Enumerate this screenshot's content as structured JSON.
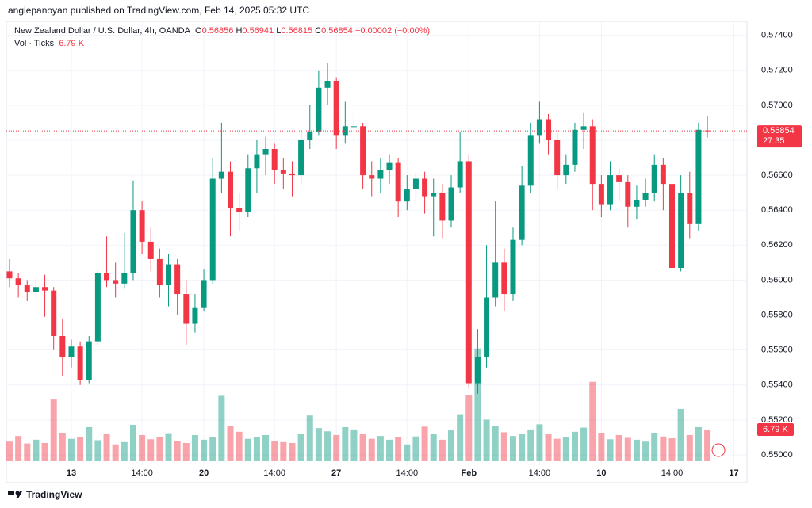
{
  "header": "angiepanoyan published on TradingView.com, Feb 14, 2025 05:32 UTC",
  "footer": "TradingView",
  "chart_data": {
    "type": "candlestick",
    "symbol": "New Zealand Dollar / U.S. Dollar, 4h, OANDA",
    "legend_letters": [
      "O",
      "H",
      "L",
      "C"
    ],
    "change_label": "−0.00002 (−0.00%)",
    "volume_title": "Vol · Ticks",
    "countdown": "27:35",
    "up_color": "#089981",
    "down_color": "#f23645",
    "grid": true,
    "categories": [
      null,
      null,
      null,
      null,
      null,
      null,
      null,
      "13",
      null,
      null,
      null,
      null,
      null,
      null,
      null,
      "14:00",
      null,
      null,
      null,
      null,
      null,
      null,
      "20",
      null,
      null,
      null,
      null,
      null,
      null,
      null,
      "14:00",
      null,
      null,
      null,
      null,
      null,
      null,
      "27",
      null,
      null,
      null,
      null,
      null,
      null,
      null,
      "14:00",
      null,
      null,
      null,
      null,
      null,
      null,
      "Feb",
      null,
      null,
      null,
      null,
      null,
      null,
      null,
      "14:00",
      null,
      null,
      null,
      null,
      null,
      null,
      "10",
      null,
      null,
      null,
      null,
      null,
      null,
      null,
      "14:00",
      null,
      null,
      null,
      null,
      null,
      null,
      "17",
      null
    ],
    "candles": {
      "open": [
        0.5605,
        0.5601,
        0.5597,
        0.5593,
        0.5596,
        0.5594,
        0.5568,
        0.5556,
        0.5562,
        0.5543,
        0.5565,
        0.5604,
        0.56,
        0.5598,
        0.5604,
        0.564,
        0.5622,
        0.5612,
        0.5597,
        0.5609,
        0.5592,
        0.5575,
        0.5584,
        0.56,
        0.5658,
        0.5662,
        0.5641,
        0.5639,
        0.5664,
        0.5672,
        0.5675,
        0.5663,
        0.5661,
        0.566,
        0.568,
        0.5685,
        0.571,
        0.5714,
        0.5683,
        0.5688,
        0.5688,
        0.566,
        0.5658,
        0.5663,
        0.5667,
        0.5645,
        0.5652,
        0.5658,
        0.5648,
        0.565,
        0.5634,
        0.5653,
        0.5668,
        0.5541,
        0.5556,
        0.559,
        0.561,
        0.5592,
        0.5623,
        0.5654,
        0.5683,
        0.5692,
        0.568,
        0.566,
        0.5666,
        0.5686,
        0.5688,
        0.5655,
        0.5643,
        0.566,
        0.5656,
        0.5642,
        0.5646,
        0.565,
        0.5666,
        0.5655,
        0.5607,
        0.565,
        0.5632,
        0.56856,
        null,
        null,
        null,
        null
      ],
      "high": [
        0.5612,
        0.5604,
        0.56,
        0.5602,
        0.5603,
        0.5596,
        0.5578,
        0.5566,
        0.5565,
        0.5568,
        0.5606,
        0.5625,
        0.561,
        0.5627,
        0.5657,
        0.5645,
        0.563,
        0.5618,
        0.5615,
        0.5612,
        0.56,
        0.5592,
        0.5606,
        0.567,
        0.569,
        0.5668,
        0.565,
        0.5672,
        0.568,
        0.5682,
        0.5678,
        0.567,
        0.5668,
        0.5685,
        0.57,
        0.572,
        0.5724,
        0.5716,
        0.5702,
        0.5696,
        0.569,
        0.5668,
        0.567,
        0.5672,
        0.567,
        0.566,
        0.5662,
        0.5662,
        0.5658,
        0.5655,
        0.566,
        0.5685,
        0.5672,
        0.5572,
        0.562,
        0.5645,
        0.5618,
        0.563,
        0.5665,
        0.569,
        0.5702,
        0.5695,
        0.5684,
        0.5672,
        0.569,
        0.5696,
        0.5692,
        0.566,
        0.5668,
        0.5664,
        0.566,
        0.5654,
        0.5658,
        0.5672,
        0.567,
        0.566,
        0.566,
        0.5662,
        0.569,
        0.56941,
        null,
        null,
        null,
        null
      ],
      "low": [
        0.5596,
        0.559,
        0.5588,
        0.559,
        0.5579,
        0.556,
        0.5545,
        0.555,
        0.554,
        0.5541,
        0.5562,
        0.5596,
        0.559,
        0.5595,
        0.56,
        0.5615,
        0.5605,
        0.559,
        0.5585,
        0.558,
        0.5563,
        0.557,
        0.5582,
        0.5598,
        0.565,
        0.5625,
        0.5628,
        0.5636,
        0.565,
        0.566,
        0.5655,
        0.5652,
        0.5648,
        0.5655,
        0.5675,
        0.5683,
        0.57,
        0.5675,
        0.5678,
        0.5675,
        0.5652,
        0.5648,
        0.565,
        0.5655,
        0.5636,
        0.564,
        0.5645,
        0.5638,
        0.5625,
        0.5624,
        0.563,
        0.565,
        0.5538,
        0.5535,
        0.555,
        0.5585,
        0.5582,
        0.5588,
        0.562,
        0.565,
        0.5678,
        0.5672,
        0.5652,
        0.5655,
        0.5662,
        0.5675,
        0.564,
        0.5636,
        0.564,
        0.5645,
        0.563,
        0.5635,
        0.5642,
        0.5645,
        0.564,
        0.5601,
        0.5605,
        0.5624,
        0.5628,
        0.56815,
        null,
        null,
        null,
        null
      ],
      "close": [
        0.5601,
        0.5597,
        0.5593,
        0.5596,
        0.5594,
        0.5568,
        0.5556,
        0.5562,
        0.5543,
        0.5565,
        0.5604,
        0.56,
        0.5598,
        0.5604,
        0.564,
        0.5622,
        0.5612,
        0.5597,
        0.5609,
        0.5592,
        0.5575,
        0.5584,
        0.56,
        0.5658,
        0.5662,
        0.5641,
        0.5639,
        0.5664,
        0.5672,
        0.5675,
        0.5663,
        0.5661,
        0.566,
        0.568,
        0.5685,
        0.571,
        0.5714,
        0.5683,
        0.5688,
        0.5688,
        0.566,
        0.5658,
        0.5663,
        0.5667,
        0.5645,
        0.5652,
        0.5658,
        0.5648,
        0.565,
        0.5634,
        0.5653,
        0.5668,
        0.5541,
        0.5556,
        0.559,
        0.561,
        0.5592,
        0.5623,
        0.5654,
        0.5683,
        0.5692,
        0.568,
        0.566,
        0.5666,
        0.5686,
        0.5688,
        0.5655,
        0.5643,
        0.566,
        0.5656,
        0.5642,
        0.5646,
        0.565,
        0.5666,
        0.5655,
        0.5607,
        0.565,
        0.5632,
        0.5686,
        0.56854,
        null,
        null,
        null,
        null
      ]
    },
    "volume": {
      "values": [
        4200,
        5400,
        3800,
        4600,
        3900,
        13200,
        6100,
        4800,
        5200,
        7300,
        4500,
        5900,
        3600,
        4100,
        7800,
        5600,
        4700,
        5200,
        6000,
        4400,
        3900,
        5600,
        4600,
        5100,
        14000,
        7600,
        6300,
        4800,
        5200,
        5600,
        4300,
        4100,
        3900,
        5900,
        9800,
        7100,
        6400,
        5600,
        7300,
        6800,
        5900,
        4800,
        5400,
        4600,
        5100,
        3600,
        5300,
        7400,
        5800,
        4600,
        6600,
        9900,
        14200,
        24100,
        8900,
        7600,
        6200,
        5400,
        5800,
        6800,
        7900,
        5900,
        4800,
        5200,
        6300,
        7200,
        17000,
        6100,
        4700,
        5600,
        5000,
        4600,
        4200,
        6100,
        5300,
        4900,
        11200,
        5600,
        7300,
        6790,
        null,
        null,
        null,
        null
      ],
      "value_labels": [
        null,
        null,
        null,
        null,
        null,
        null,
        null,
        null,
        null,
        null,
        null,
        null,
        null,
        null,
        null,
        null,
        null,
        null,
        null,
        null,
        null,
        null,
        null,
        null,
        null,
        null,
        null,
        null,
        null,
        null,
        null,
        null,
        null,
        null,
        null,
        null,
        null,
        null,
        null,
        null,
        null,
        null,
        null,
        null,
        null,
        null,
        null,
        null,
        null,
        null,
        null,
        null,
        null,
        null,
        null,
        null,
        null,
        null,
        null,
        null,
        null,
        null,
        null,
        null,
        null,
        null,
        null,
        null,
        null,
        null,
        null,
        null,
        null,
        null,
        null,
        null,
        null,
        null,
        null,
        "6.79 K",
        null,
        null,
        null,
        null
      ]
    },
    "ylim": [
      0.5495,
      0.5748
    ],
    "yticks": [
      {
        "value": 0.55,
        "label": "0.55000"
      },
      {
        "value": 0.552,
        "label": "0.55200"
      },
      {
        "value": 0.554,
        "label": "0.55400"
      },
      {
        "value": 0.556,
        "label": "0.55600"
      },
      {
        "value": 0.558,
        "label": "0.55800"
      },
      {
        "value": 0.56,
        "label": "0.56000"
      },
      {
        "value": 0.562,
        "label": "0.56200"
      },
      {
        "value": 0.564,
        "label": "0.56400"
      },
      {
        "value": 0.566,
        "label": "0.56600"
      },
      {
        "value": 0.568,
        "label": "0.56800"
      },
      {
        "value": 0.57,
        "label": "0.57000"
      },
      {
        "value": 0.572,
        "label": "0.57200"
      },
      {
        "value": 0.574,
        "label": "0.57400"
      }
    ]
  }
}
